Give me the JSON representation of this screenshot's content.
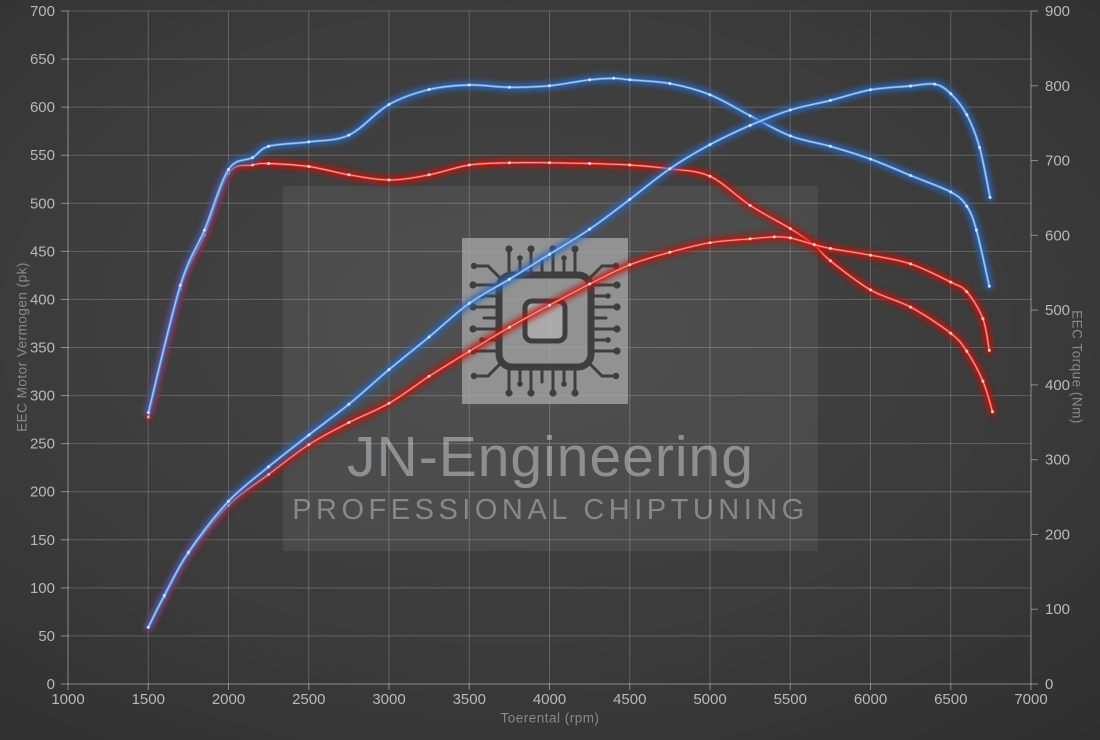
{
  "axes": {
    "x": {
      "label": "Toerental (rpm)",
      "min": 1000,
      "max": 7000,
      "step": 500,
      "ticks": [
        1000,
        1500,
        2000,
        2500,
        3000,
        3500,
        4000,
        4500,
        5000,
        5500,
        6000,
        6500,
        7000
      ]
    },
    "y_left": {
      "label": "EEC Motor Vermogen (pk)",
      "min": 0,
      "max": 700,
      "step": 50,
      "ticks": [
        0,
        50,
        100,
        150,
        200,
        250,
        300,
        350,
        400,
        450,
        500,
        550,
        600,
        650,
        700
      ]
    },
    "y_right": {
      "label": "EEC Torque (Nm)",
      "min": 0,
      "max": 900,
      "step": 100,
      "ticks": [
        0,
        100,
        200,
        300,
        400,
        500,
        600,
        700,
        800,
        900
      ]
    }
  },
  "watermark": {
    "brand": "JN-Engineering",
    "subtitle": "PROFESSIONAL CHIPTUNING",
    "icon": "chip-icon"
  },
  "colors": {
    "background_center": "#454545",
    "background_edge": "#2d2d2d",
    "grid": "rgba(255,255,255,0.20)",
    "axis": "rgba(255,255,255,0.42)",
    "tick_text": "#b7b9ba",
    "axis_title_text": "#87898b",
    "watermark_text": "rgba(222,227,231,0.45)",
    "blue_glow": "#2a66bd",
    "blue_core": "#5f9bde",
    "blue_inner": "#b9d7f7",
    "blue_marker": "#d6e8ff",
    "red_glow": "#b81210",
    "red_core": "#e8362d",
    "red_inner": "#ffb3ad",
    "red_marker": "#ffd9d6"
  },
  "chart_data": {
    "type": "line",
    "title": "",
    "xlabel": "Toerental (rpm)",
    "ylabel_left": "EEC Motor Vermogen (pk)",
    "ylabel_right": "EEC Torque (Nm)",
    "x_range": [
      1000,
      7000
    ],
    "y_left_range": [
      0,
      700
    ],
    "y_right_range": [
      0,
      900
    ],
    "grid": true,
    "legend": "none",
    "series": [
      {
        "name": "torque-run-red",
        "axis": "right",
        "unit": "Nm",
        "color": "red",
        "points": [
          [
            1500,
            357
          ],
          [
            1700,
            528
          ],
          [
            1850,
            600
          ],
          [
            2000,
            683
          ],
          [
            2150,
            694
          ],
          [
            2250,
            696
          ],
          [
            2500,
            692
          ],
          [
            2750,
            681
          ],
          [
            3000,
            674
          ],
          [
            3250,
            681
          ],
          [
            3500,
            694
          ],
          [
            3750,
            697
          ],
          [
            4000,
            697
          ],
          [
            4250,
            696
          ],
          [
            4500,
            694
          ],
          [
            4750,
            689
          ],
          [
            5000,
            679
          ],
          [
            5250,
            640
          ],
          [
            5500,
            609
          ],
          [
            5650,
            587
          ],
          [
            5750,
            566
          ],
          [
            6000,
            527
          ],
          [
            6250,
            504
          ],
          [
            6500,
            469
          ],
          [
            6600,
            445
          ],
          [
            6700,
            405
          ],
          [
            6760,
            364
          ]
        ]
      },
      {
        "name": "power-run-red",
        "axis": "left",
        "unit": "pk",
        "color": "red",
        "points": [
          [
            1500,
            59
          ],
          [
            1600,
            90
          ],
          [
            1750,
            135
          ],
          [
            2000,
            186
          ],
          [
            2250,
            218
          ],
          [
            2500,
            249
          ],
          [
            2750,
            272
          ],
          [
            3000,
            292
          ],
          [
            3250,
            320
          ],
          [
            3500,
            346
          ],
          [
            3750,
            371
          ],
          [
            4000,
            394
          ],
          [
            4250,
            416
          ],
          [
            4500,
            436
          ],
          [
            4750,
            449
          ],
          [
            5000,
            459
          ],
          [
            5250,
            463
          ],
          [
            5400,
            465
          ],
          [
            5500,
            464
          ],
          [
            5650,
            457
          ],
          [
            5750,
            453
          ],
          [
            6000,
            446
          ],
          [
            6250,
            437
          ],
          [
            6500,
            418
          ],
          [
            6600,
            408
          ],
          [
            6700,
            380
          ],
          [
            6740,
            347
          ]
        ]
      },
      {
        "name": "torque-run-blue",
        "axis": "right",
        "unit": "Nm",
        "color": "blue",
        "points": [
          [
            1500,
            363
          ],
          [
            1700,
            533
          ],
          [
            1850,
            607
          ],
          [
            2000,
            688
          ],
          [
            2150,
            704
          ],
          [
            2250,
            719
          ],
          [
            2500,
            725
          ],
          [
            2750,
            734
          ],
          [
            3000,
            775
          ],
          [
            3250,
            795
          ],
          [
            3500,
            801
          ],
          [
            3750,
            798
          ],
          [
            4000,
            800
          ],
          [
            4250,
            808
          ],
          [
            4400,
            810
          ],
          [
            4500,
            808
          ],
          [
            4750,
            803
          ],
          [
            5000,
            788
          ],
          [
            5250,
            760
          ],
          [
            5500,
            733
          ],
          [
            5750,
            719
          ],
          [
            6000,
            702
          ],
          [
            6250,
            680
          ],
          [
            6500,
            658
          ],
          [
            6600,
            639
          ],
          [
            6660,
            607
          ],
          [
            6740,
            532
          ]
        ]
      },
      {
        "name": "power-run-blue",
        "axis": "left",
        "unit": "pk",
        "color": "blue",
        "points": [
          [
            1500,
            59
          ],
          [
            1600,
            92
          ],
          [
            1750,
            137
          ],
          [
            2000,
            190
          ],
          [
            2250,
            226
          ],
          [
            2500,
            259
          ],
          [
            2750,
            291
          ],
          [
            3000,
            327
          ],
          [
            3250,
            361
          ],
          [
            3500,
            396
          ],
          [
            3750,
            421
          ],
          [
            4000,
            447
          ],
          [
            4250,
            473
          ],
          [
            4500,
            504
          ],
          [
            4750,
            536
          ],
          [
            5000,
            561
          ],
          [
            5250,
            581
          ],
          [
            5500,
            597
          ],
          [
            5750,
            607
          ],
          [
            6000,
            618
          ],
          [
            6250,
            622
          ],
          [
            6400,
            624
          ],
          [
            6500,
            614
          ],
          [
            6600,
            592
          ],
          [
            6680,
            558
          ],
          [
            6745,
            506
          ]
        ]
      }
    ]
  }
}
